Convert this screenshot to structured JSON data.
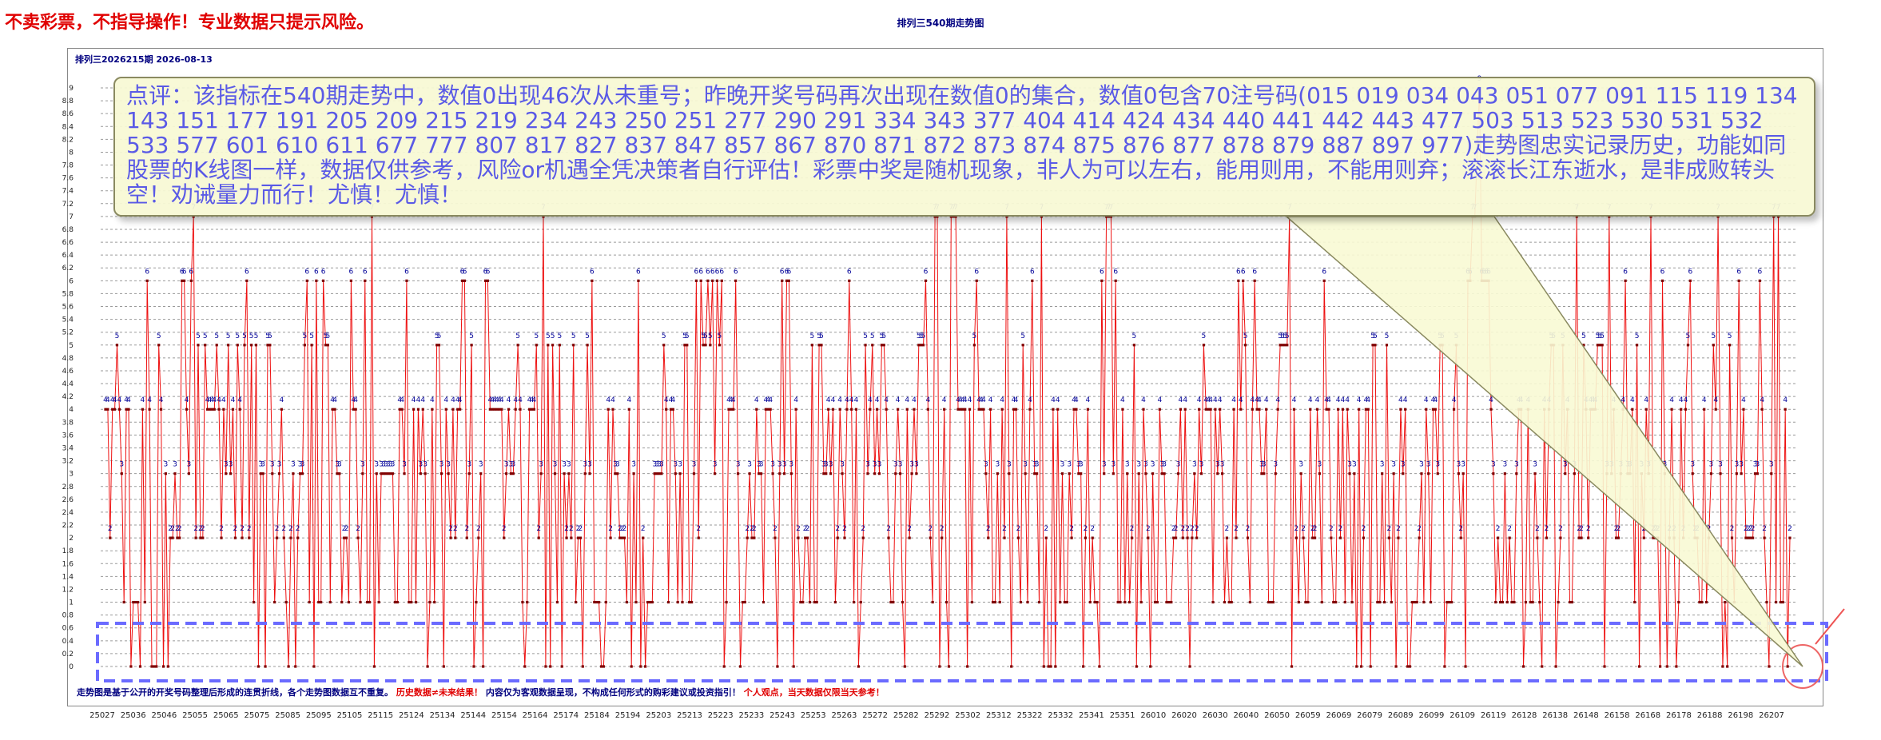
{
  "header": {
    "warning": "不卖彩票，不指导操作！专业数据只提示风险。",
    "title": "排列三540期走势图",
    "period_label": "排列三2026215期  2026-08-13"
  },
  "comment": {
    "text": "点评：该指标在540期走势中，数值0出现46次从未重号；昨晚开奖号码再次出现在数值0的集合，数值0包含70注号码(015 019 034 043 051 077 091 115 119 134 143 151 177 191 205 209 215 219 234 243 250 251 277 290 291 334 343 377 404 414 424 434 440 441 442 443 477 503 513 523 530 531 532 533 577 601 610 611 677 777 807 817 827 837 847 857 867 870 871 872 873 874 875 876 877 878 879 887 897 977)走势图忠实记录历史，功能如同股票的K线图一样，数据仅供参考，风险or机遇全凭决策者自行评估！彩票中奖是随机现象，非人为可以左右，能用则用，不能用则弃；滚滚长江东逝水，是非成败转头空！劝诫量力而行！尤慎！尤慎！"
  },
  "footer": {
    "note_1": "走势图是基于公开的开奖号码整理后形成的连贯折线，各个走势图数据互不重复。",
    "note_2": "历史数据≠未来结果！",
    "note_3": "内容仅为客观数据呈现，不构成任何形式的购彩建议或投资指引！",
    "note_4": "个人观点，当天数据仅限当天参考！"
  },
  "colors": {
    "line": "#ee1111",
    "point": "#800000",
    "value_label": "#000099",
    "grid": "#9a9a9a",
    "highlight_box": "#6b6bff",
    "warning": "#e00000"
  },
  "chart_data": {
    "type": "line",
    "title": "排列三540期走势图",
    "y_ticks": [
      "0",
      "0.2",
      "0.4",
      "0.6",
      "0.8",
      "1",
      "1.2",
      "1.4",
      "1.6",
      "1.8",
      "2",
      "2.2",
      "2.4",
      "2.6",
      "2.8",
      "3",
      "3.2",
      "3.4",
      "3.6",
      "3.8",
      "4",
      "4.2",
      "4.4",
      "4.6",
      "4.8",
      "5",
      "5.2",
      "5.4",
      "5.6",
      "5.8",
      "6",
      "6.2",
      "6.4",
      "6.6",
      "6.8",
      "7",
      "7.2",
      "7.4",
      "7.6",
      "7.8",
      "8",
      "8.2",
      "8.4",
      "8.6",
      "8.8",
      "9"
    ],
    "ylim": [
      0,
      9
    ],
    "x_ticks": [
      "25027",
      "25036",
      "25046",
      "25055",
      "25065",
      "25075",
      "25085",
      "25095",
      "25105",
      "25115",
      "25124",
      "25134",
      "25144",
      "25154",
      "25164",
      "25174",
      "25184",
      "25194",
      "25203",
      "25213",
      "25223",
      "25233",
      "25243",
      "25253",
      "25263",
      "25272",
      "25282",
      "25292",
      "25302",
      "25312",
      "25322",
      "25332",
      "25341",
      "25351",
      "26010",
      "26020",
      "26030",
      "26040",
      "26050",
      "26059",
      "26069",
      "26079",
      "26089",
      "26099",
      "26109",
      "26119",
      "26128",
      "26138",
      "26148",
      "26158",
      "26168",
      "26178",
      "26188",
      "26198",
      "26207"
    ],
    "grid": true,
    "values": [
      4,
      4,
      2,
      4,
      4,
      5,
      4,
      3,
      1,
      4,
      4,
      0,
      1,
      1,
      1,
      0,
      4,
      1,
      6,
      4,
      0,
      0,
      0,
      5,
      4,
      0,
      3,
      0,
      2,
      2,
      3,
      2,
      2,
      6,
      6,
      4,
      3,
      6,
      7,
      2,
      5,
      2,
      2,
      5,
      4,
      4,
      4,
      4,
      5,
      4,
      2,
      4,
      3,
      5,
      3,
      4,
      2,
      5,
      4,
      2,
      5,
      6,
      2,
      5,
      1,
      5,
      0,
      3,
      3,
      0,
      5,
      5,
      3,
      1,
      2,
      3,
      4,
      2,
      1,
      0,
      2,
      3,
      0,
      2,
      3,
      3,
      5,
      6,
      1,
      5,
      0,
      6,
      1,
      1,
      6,
      5,
      5,
      1,
      4,
      4,
      3,
      3,
      1,
      2,
      2,
      1,
      6,
      4,
      4,
      2,
      1,
      3,
      6,
      1,
      1,
      7,
      0,
      3,
      1,
      3,
      3,
      3,
      3,
      3,
      3,
      1,
      1,
      4,
      4,
      3,
      6,
      1,
      1,
      4,
      1,
      4,
      3,
      4,
      3,
      0,
      1,
      4,
      1,
      5,
      5,
      3,
      0,
      4,
      3,
      2,
      4,
      2,
      4,
      4,
      6,
      6,
      2,
      3,
      5,
      0,
      1,
      2,
      3,
      0,
      6,
      6,
      4,
      4,
      4,
      4,
      4,
      4,
      2,
      3,
      4,
      3,
      3,
      4,
      5,
      4,
      1,
      0,
      1,
      4,
      4,
      4,
      5,
      2,
      3,
      7,
      0,
      5,
      0,
      5,
      3,
      1,
      5,
      0,
      3,
      2,
      3,
      2,
      5,
      1,
      2,
      2,
      0,
      3,
      5,
      3,
      6,
      1,
      1,
      1,
      0,
      0,
      1,
      4,
      2,
      4,
      3,
      3,
      2,
      2,
      2,
      1,
      4,
      0,
      3,
      1,
      6,
      0,
      2,
      0,
      1,
      1,
      1,
      3,
      3,
      3,
      3,
      5,
      4,
      1,
      4,
      4,
      3,
      1,
      3,
      1,
      5,
      5,
      1,
      1,
      3,
      6,
      2,
      6,
      5,
      5,
      6,
      5,
      6,
      3,
      6,
      5,
      6,
      0,
      1,
      4,
      4,
      4,
      6,
      3,
      0,
      1,
      1,
      2,
      3,
      2,
      2,
      4,
      3,
      3,
      1,
      4,
      4,
      4,
      3,
      2,
      0,
      3,
      6,
      3,
      6,
      6,
      3,
      0,
      4,
      2,
      1,
      1,
      2,
      2,
      1,
      5,
      1,
      1,
      5,
      5,
      3,
      3,
      4,
      3,
      4,
      1,
      2,
      4,
      3,
      2,
      4,
      6,
      4,
      1,
      4,
      0,
      1,
      2,
      5,
      3,
      4,
      5,
      3,
      4,
      3,
      5,
      5,
      4,
      2,
      1,
      1,
      3,
      4,
      3,
      1,
      0,
      4,
      2,
      3,
      4,
      3,
      5,
      5,
      5,
      6,
      4,
      2,
      1,
      7,
      7,
      0,
      2,
      4,
      1,
      0,
      7,
      7,
      7,
      4,
      4,
      4,
      4,
      0,
      4,
      1,
      5,
      6,
      4,
      4,
      4,
      3,
      2,
      4,
      1,
      1,
      3,
      1,
      4,
      2,
      7,
      3,
      0,
      4,
      4,
      2,
      1,
      5,
      3,
      1,
      4,
      6,
      3,
      3,
      1,
      7,
      0,
      2,
      0,
      0,
      4,
      0,
      4,
      1,
      3,
      1,
      1,
      3,
      2,
      4,
      4,
      3,
      3,
      0,
      2,
      4,
      1,
      2,
      1,
      1,
      0,
      6,
      3,
      7,
      7,
      7,
      3,
      6,
      1,
      1,
      4,
      1,
      3,
      1,
      2,
      5,
      0,
      3,
      1,
      4,
      3,
      2,
      0,
      3,
      1,
      1,
      4,
      3,
      3,
      1,
      1,
      1,
      2,
      2,
      3,
      4,
      2,
      4,
      2,
      0,
      2,
      3,
      2,
      4,
      3,
      5,
      4,
      4,
      4,
      1,
      4,
      3,
      4,
      3,
      1,
      2,
      1,
      1,
      4,
      2,
      6,
      4,
      6,
      5,
      2,
      1,
      4,
      6,
      4,
      4,
      3,
      3,
      4,
      1,
      1,
      1,
      3,
      4,
      5,
      5,
      5,
      5,
      7,
      0,
      4,
      2,
      1,
      3,
      2,
      1,
      1,
      4,
      2,
      2,
      4,
      3,
      1,
      6,
      4,
      4,
      2,
      1,
      1,
      4,
      2,
      4,
      1,
      4,
      3,
      1,
      3,
      0,
      4,
      0,
      2,
      4,
      4,
      0,
      5,
      5,
      1,
      1,
      3,
      1,
      5,
      2,
      1,
      3,
      0,
      2,
      4,
      3,
      4,
      0,
      0,
      1,
      1,
      1,
      2,
      3,
      1,
      4,
      3,
      1,
      4,
      4,
      3,
      5,
      5,
      0,
      1,
      1,
      1,
      4,
      5,
      3,
      2,
      3,
      0,
      6,
      6,
      7,
      7,
      8,
      9,
      6,
      6,
      6,
      6,
      4,
      3,
      1,
      2,
      1,
      1,
      3,
      1,
      2,
      1,
      1,
      3,
      4,
      4,
      0,
      1,
      4,
      1,
      1,
      3,
      2,
      1,
      0,
      4,
      2,
      4,
      5,
      5,
      0,
      1,
      2,
      5,
      3,
      4,
      1,
      1,
      3,
      7,
      2,
      2,
      5,
      4,
      2,
      4,
      4,
      4,
      5,
      5,
      5,
      0,
      3,
      7,
      3,
      4,
      2,
      2,
      3,
      4,
      6,
      3,
      3,
      4,
      1,
      5,
      0,
      3,
      2,
      4,
      3,
      7,
      2,
      2,
      2,
      0,
      6,
      3,
      0,
      2,
      4,
      2,
      0,
      1,
      4,
      2,
      4,
      5,
      6,
      3,
      2,
      2,
      1,
      1,
      4,
      1,
      2,
      3,
      5,
      4,
      7,
      3,
      0,
      1,
      0,
      5,
      2,
      1,
      3,
      6,
      3,
      4,
      2,
      2,
      2,
      2,
      3,
      3,
      6,
      4,
      2,
      1,
      0,
      3,
      7,
      1,
      7,
      1,
      1,
      4,
      0,
      2
    ]
  }
}
